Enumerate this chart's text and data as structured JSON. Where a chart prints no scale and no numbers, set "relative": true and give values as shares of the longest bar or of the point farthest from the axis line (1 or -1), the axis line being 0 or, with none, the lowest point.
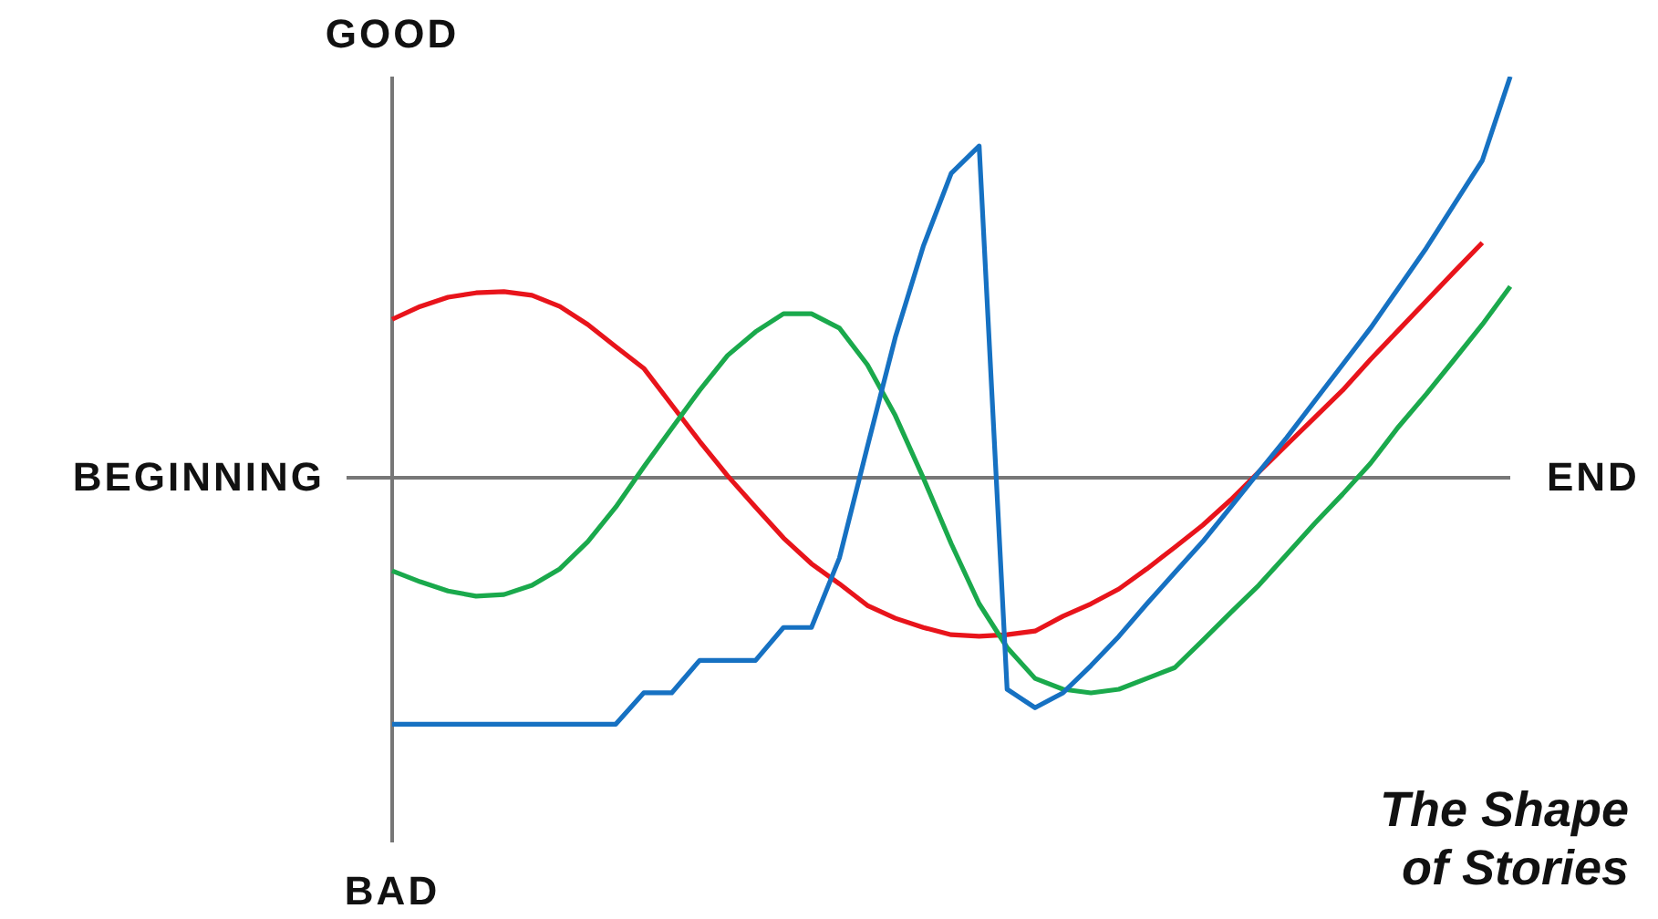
{
  "chart_data": {
    "type": "line",
    "title": "The Shape of Stories",
    "annotations": [
      "GOOD",
      "BAD",
      "BEGINNING",
      "END"
    ],
    "relative": true,
    "tick_labels": false,
    "marker": "none",
    "line_style": "solid",
    "categories": [
      null,
      null,
      null,
      null,
      null,
      null,
      null,
      null,
      null,
      null,
      null,
      null,
      null,
      null,
      null,
      null,
      null,
      null,
      null,
      null,
      null,
      null,
      null,
      null,
      null,
      null,
      null,
      null,
      null,
      null,
      null,
      null,
      null,
      null,
      null,
      null,
      null,
      null,
      null,
      null,
      null
    ],
    "series": [
      {
        "color": "#e8141b",
        "values": [
          0.395,
          0.427,
          0.45,
          0.461,
          0.464,
          0.455,
          0.427,
          0.382,
          0.327,
          0.273,
          0.182,
          0.091,
          0.005,
          -0.073,
          -0.15,
          -0.214,
          -0.264,
          -0.318,
          -0.35,
          -0.373,
          -0.391,
          -0.395,
          -0.391,
          -0.382,
          -0.345,
          -0.314,
          -0.277,
          -0.227,
          -0.173,
          -0.118,
          -0.055,
          0.014,
          0.082,
          0.15,
          0.218,
          0.295,
          0.368,
          0.441,
          0.514,
          0.586,
          null
        ]
      },
      {
        "color": "#1aa94c",
        "values": [
          -0.232,
          -0.259,
          -0.282,
          -0.295,
          -0.291,
          -0.268,
          -0.227,
          -0.159,
          -0.073,
          0.027,
          0.123,
          0.218,
          0.305,
          0.364,
          0.409,
          0.409,
          0.373,
          0.282,
          0.155,
          0,
          -0.164,
          -0.314,
          -0.423,
          -0.5,
          -0.527,
          -0.536,
          -0.527,
          -0.5,
          -0.473,
          -0.405,
          -0.336,
          -0.268,
          -0.191,
          -0.114,
          -0.041,
          0.036,
          0.127,
          0.209,
          0.295,
          0.382,
          0.477
        ]
      },
      {
        "color": "#1671c2",
        "values": [
          -0.614,
          -0.614,
          -0.614,
          -0.614,
          -0.614,
          -0.614,
          -0.614,
          -0.614,
          -0.614,
          -0.536,
          -0.536,
          -0.455,
          -0.455,
          -0.455,
          -0.373,
          -0.373,
          -0.2,
          0.077,
          0.35,
          0.577,
          0.759,
          0.827,
          -0.527,
          -0.573,
          -0.536,
          -0.468,
          -0.395,
          -0.314,
          -0.236,
          -0.159,
          -0.073,
          0.014,
          0.1,
          0.191,
          0.282,
          0.373,
          0.473,
          0.573,
          0.682,
          0.791,
          1
        ]
      }
    ]
  }
}
